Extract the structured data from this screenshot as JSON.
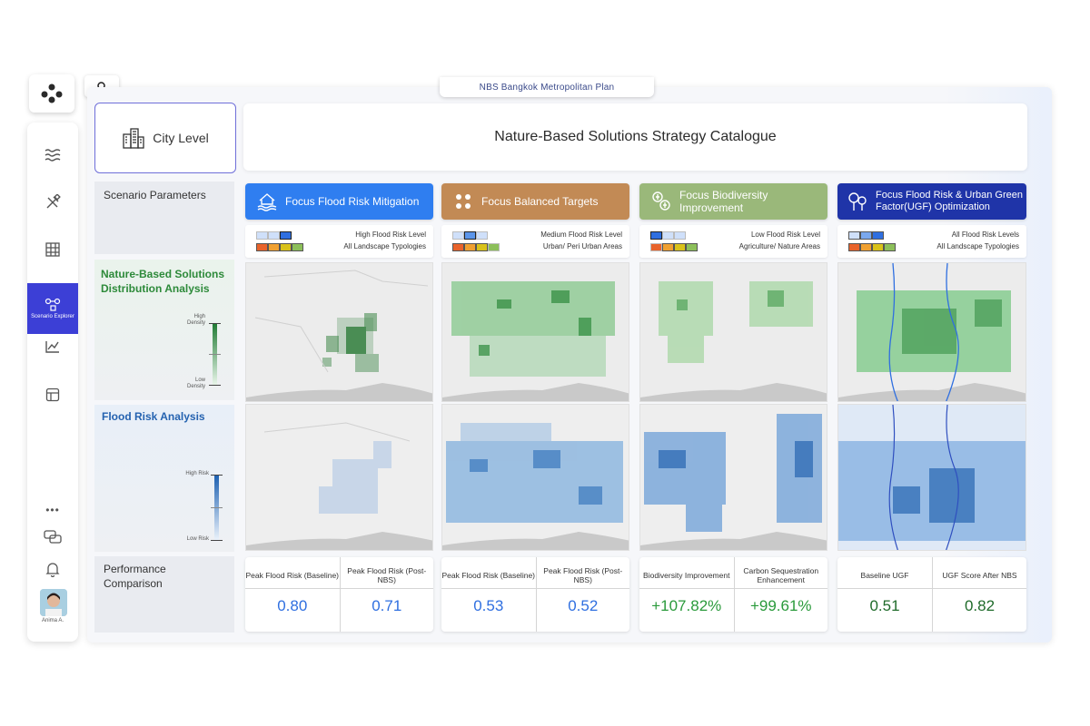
{
  "app": {
    "title": "NBS Bangkok Metropolitan Plan",
    "user_name": "Anima A."
  },
  "sidebar": {
    "items": [
      {
        "name": "waves",
        "icon": "waves-icon"
      },
      {
        "name": "tools",
        "icon": "tools-icon"
      },
      {
        "name": "map",
        "icon": "map-grid-icon"
      },
      {
        "name": "scenario",
        "icon": "scenario-explorer-icon",
        "label": "Scenario Explorer",
        "active": true
      },
      {
        "name": "chart",
        "icon": "line-chart-icon"
      },
      {
        "name": "table",
        "icon": "table-icon"
      }
    ],
    "more": "•••"
  },
  "header": {
    "city_level": "City Level",
    "catalogue_title": "Nature-Based Solutions Strategy Catalogue"
  },
  "rows": {
    "scenario": "Scenario Parameters",
    "nbs": "Nature-Based Solutions Distribution Analysis",
    "nbs_high": "High Density",
    "nbs_low": "Low Density",
    "flood": "Flood Risk Analysis",
    "flood_high": "High Risk",
    "flood_low": "Low Risk",
    "perf": "Performance Comparison"
  },
  "strategies": [
    {
      "title": "Focus Flood Risk Mitigation",
      "color": "#2f7ef0",
      "risk_text": "High Flood Risk Level",
      "typology_text": "All Landscape Typologies",
      "metrics": [
        {
          "label": "Peak Flood Risk (Baseline)",
          "value": "0.80"
        },
        {
          "label": "Peak Flood Risk (Post-NBS)",
          "value": "0.71"
        }
      ]
    },
    {
      "title": "Focus Balanced Targets",
      "color": "#c28a55",
      "risk_text": "Medium Flood Risk Level",
      "typology_text": "Urban/ Peri Urban Areas",
      "metrics": [
        {
          "label": "Peak Flood Risk (Baseline)",
          "value": "0.53"
        },
        {
          "label": "Peak Flood Risk (Post-NBS)",
          "value": "0.52"
        }
      ]
    },
    {
      "title": "Focus Biodiversity Improvement",
      "color": "#9ab87a",
      "risk_text": "Low Flood Risk Level",
      "typology_text": "Agriculture/ Nature Areas",
      "metrics": [
        {
          "label": "Biodiversity Improvement",
          "value": "+107.82%"
        },
        {
          "label": "Carbon Sequestration Enhancement",
          "value": "+99.61%"
        }
      ]
    },
    {
      "title": "Focus Flood Risk & Urban Green Factor(UGF) Optimization",
      "color": "#1f34a8",
      "risk_text": "All Flood Risk Levels",
      "typology_text": "All Landscape Typologies",
      "metrics": [
        {
          "label": "Baseline UGF",
          "value": "0.51"
        },
        {
          "label": "UGF Score After NBS",
          "value": "0.82"
        }
      ]
    }
  ]
}
